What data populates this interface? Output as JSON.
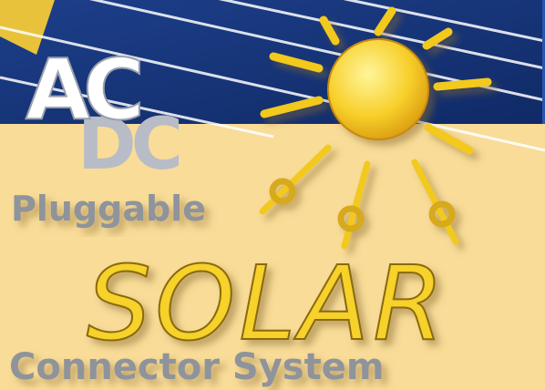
{
  "logo": {
    "ac": "AC",
    "dc": "DC"
  },
  "tagline_top": "Pluggable",
  "headline": "SOLAR",
  "tagline_bottom": "Connector System"
}
